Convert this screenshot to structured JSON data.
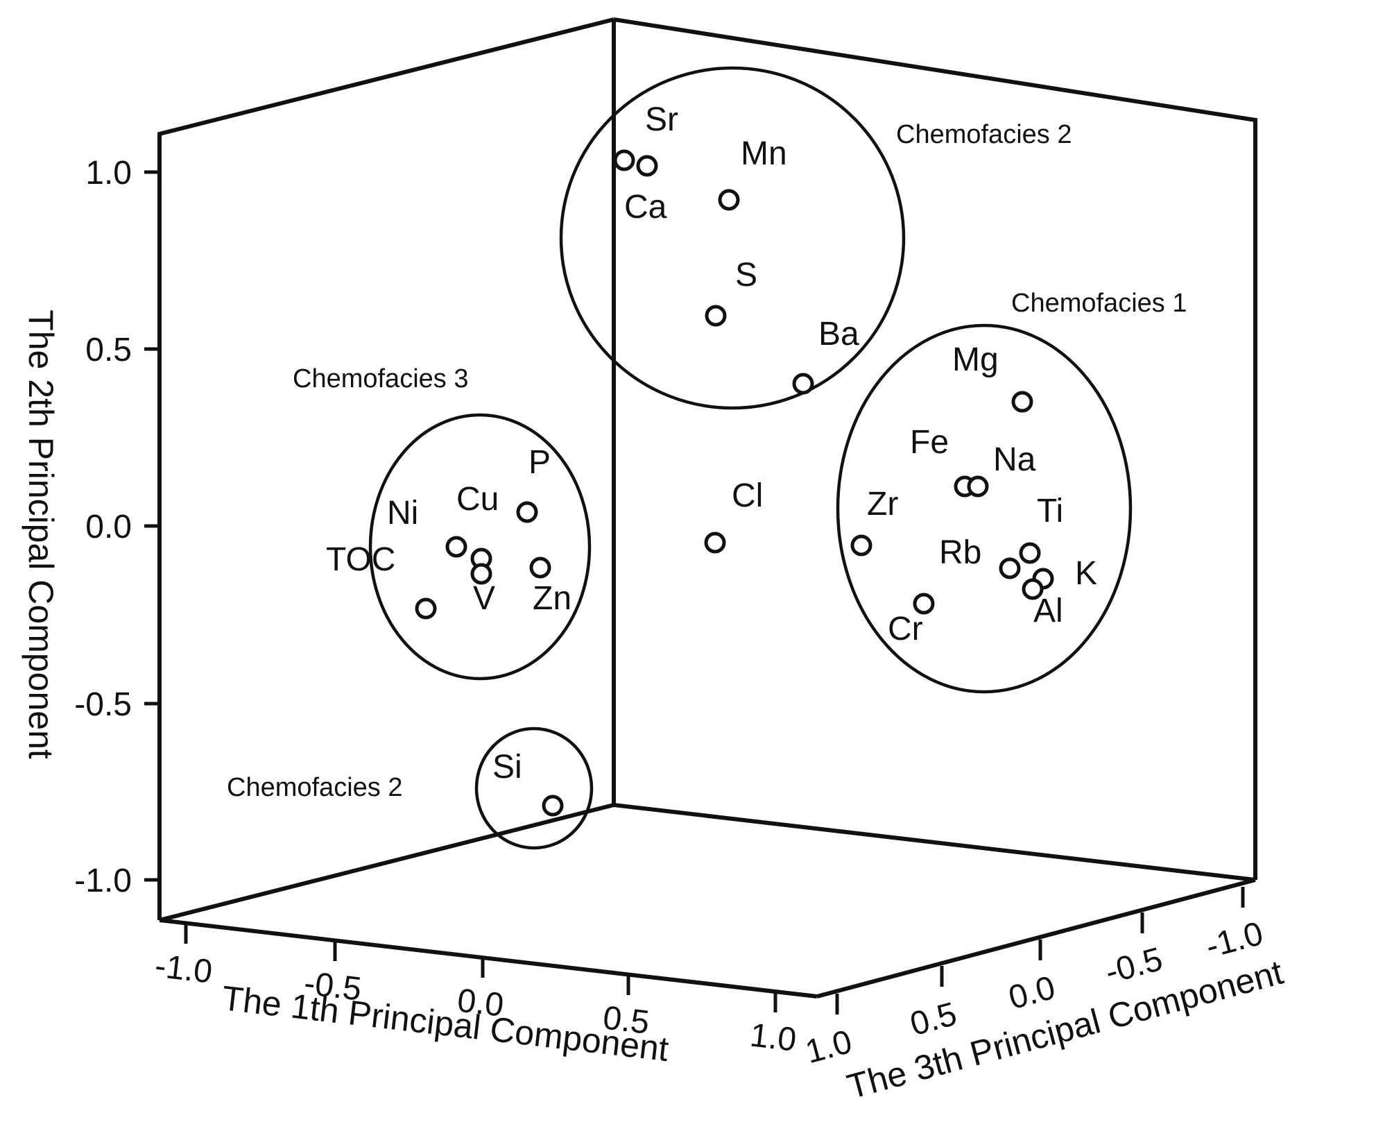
{
  "chart_data": {
    "type": "scatter",
    "title": "",
    "axes": {
      "x": {
        "label": "The 1th Principal Component",
        "ticks": [
          "-1.0",
          "-0.5",
          "0.0",
          "0.5",
          "1.0"
        ]
      },
      "y": {
        "label": "The 2th Principal Component",
        "ticks": [
          "1.0",
          "0.5",
          "0.0",
          "-0.5",
          "-1.0"
        ]
      },
      "z": {
        "label": "The 3th Principal Component",
        "ticks": [
          "1.0",
          "0.5",
          "0.0",
          "-0.5",
          "-1.0"
        ]
      }
    },
    "points": [
      {
        "label": "Sr",
        "pc2": 1.02
      },
      {
        "label": "Ca",
        "pc2": 1.03
      },
      {
        "label": "Mn",
        "pc2": 0.92
      },
      {
        "label": "S",
        "pc2": 0.59
      },
      {
        "label": "Ba",
        "pc2": 0.4
      },
      {
        "label": "Cl",
        "pc2": -0.05
      },
      {
        "label": "Mg",
        "pc2": 0.35
      },
      {
        "label": "Fe",
        "pc2": 0.11
      },
      {
        "label": "Na",
        "pc2": 0.11
      },
      {
        "label": "Zr",
        "pc2": -0.05
      },
      {
        "label": "Ti",
        "pc2": -0.07
      },
      {
        "label": "Rb",
        "pc2": -0.12
      },
      {
        "label": "K",
        "pc2": -0.15
      },
      {
        "label": "Al",
        "pc2": -0.17
      },
      {
        "label": "Cr",
        "pc2": -0.22
      },
      {
        "label": "P",
        "pc2": 0.04
      },
      {
        "label": "Cu",
        "pc2": -0.09
      },
      {
        "label": "Ni",
        "pc2": -0.05
      },
      {
        "label": "TOC",
        "pc2": -0.23
      },
      {
        "label": "V",
        "pc2": -0.12
      },
      {
        "label": "Zn",
        "pc2": -0.12
      },
      {
        "label": "Si",
        "pc2": -0.79
      }
    ],
    "groups": [
      {
        "label": "Chemofacies 2",
        "members": [
          "Sr",
          "Ca",
          "Mn",
          "S",
          "Ba"
        ]
      },
      {
        "label": "Chemofacies 1",
        "members": [
          "Mg",
          "Fe",
          "Na",
          "Zr",
          "Ti",
          "Rb",
          "K",
          "Al",
          "Cr"
        ]
      },
      {
        "label": "Chemofacies 3",
        "members": [
          "P",
          "Cu",
          "Ni",
          "TOC",
          "V",
          "Zn"
        ]
      },
      {
        "label": "Chemofacies 2",
        "members": [
          "Si"
        ]
      }
    ]
  }
}
